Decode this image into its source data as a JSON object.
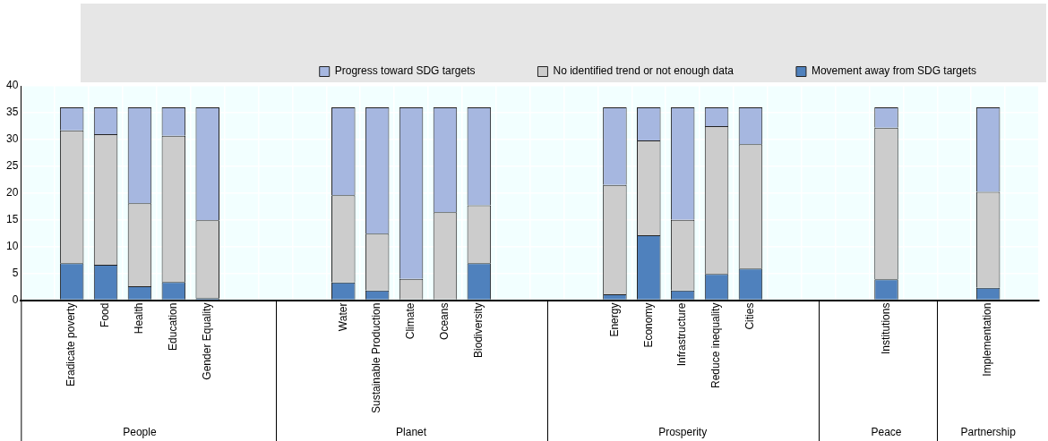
{
  "chart_data": {
    "type": "bar",
    "stacked": true,
    "categories": [
      null,
      "Eradicate poverty",
      "Food",
      "Health",
      "Education",
      "Gender Equality",
      null,
      null,
      null,
      "Water",
      "Sustainable Production",
      "Climate",
      "Oceans",
      "Biodiversity",
      null,
      null,
      null,
      "Energy",
      "Economy",
      "Infrastructure",
      "Reduce inequality",
      "Cities",
      null,
      null,
      null,
      "Institutions",
      null,
      null,
      "Implementation",
      null
    ],
    "series": [
      {
        "name": "Movement away from SDG targets",
        "color": "#4f81bd",
        "values": [
          null,
          6.9,
          6.6,
          2.6,
          3.4,
          0.4,
          null,
          null,
          null,
          3.3,
          1.8,
          0,
          0,
          6.9,
          null,
          null,
          null,
          1.1,
          12.1,
          1.8,
          4.9,
          5.9,
          null,
          null,
          null,
          3.9,
          null,
          null,
          2.3,
          null
        ]
      },
      {
        "name": "No identified trend or not enough data",
        "color": "#cccccc",
        "values": [
          null,
          24.8,
          24.4,
          15.5,
          27.3,
          14.5,
          null,
          null,
          null,
          16.3,
          10.6,
          4.0,
          16.4,
          10.8,
          null,
          null,
          null,
          20.4,
          17.7,
          13.2,
          27.6,
          23.2,
          null,
          null,
          null,
          28.3,
          null,
          null,
          17.9,
          null
        ]
      },
      {
        "name": "Progress toward SDG targets",
        "color": "#a6b7e0",
        "values": [
          null,
          4.3,
          5.0,
          17.9,
          5.3,
          21.1,
          null,
          null,
          null,
          16.4,
          23.6,
          32.0,
          19.6,
          18.3,
          null,
          null,
          null,
          14.5,
          6.2,
          21.0,
          3.5,
          6.9,
          null,
          null,
          null,
          3.8,
          null,
          null,
          15.8,
          null
        ]
      }
    ],
    "annotations": [
      "People",
      "Planet",
      "Prosperity",
      "Peace",
      "Partnership"
    ],
    "ylim": [
      0,
      40
    ],
    "yticks": [
      0,
      5,
      10,
      15,
      20,
      25,
      30,
      35,
      40
    ],
    "grid": true,
    "legend": "top"
  }
}
